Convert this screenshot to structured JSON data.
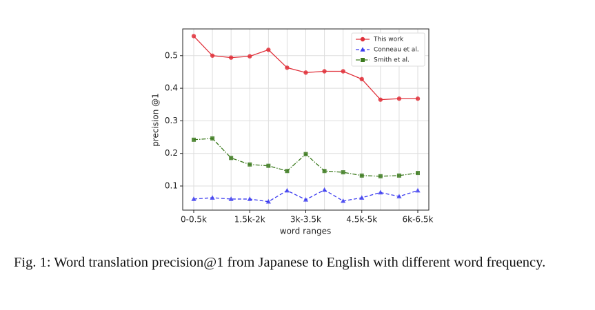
{
  "chart_data": {
    "type": "line",
    "xlabel": "word ranges",
    "ylabel": "precision @1",
    "categories": [
      "0-0.5k",
      null,
      null,
      "1.5k-2k",
      null,
      null,
      "3k-3.5k",
      null,
      null,
      "4.5k-5k",
      null,
      null,
      "6k-6.5k"
    ],
    "series": [
      {
        "name": "This work",
        "color": "#e0303a",
        "marker": "circle",
        "dash": "solid",
        "values": [
          0.56,
          0.5,
          0.494,
          0.498,
          0.518,
          0.463,
          0.448,
          0.452,
          0.452,
          0.428,
          0.365,
          0.368,
          0.368
        ]
      },
      {
        "name": "Conneau et al.",
        "color": "#3b3bf0",
        "marker": "triangle",
        "dash": "dashed",
        "values": [
          0.06,
          0.064,
          0.06,
          0.06,
          0.052,
          0.086,
          0.058,
          0.088,
          0.054,
          0.064,
          0.08,
          0.068,
          0.086
        ]
      },
      {
        "name": "Smith et al.",
        "color": "#3c7a1e",
        "marker": "square",
        "dash": "dashdot",
        "values": [
          0.242,
          0.246,
          0.186,
          0.166,
          0.162,
          0.146,
          0.198,
          0.146,
          0.142,
          0.132,
          0.13,
          0.132,
          0.14
        ]
      }
    ],
    "ylim": [
      0.026,
      0.582
    ],
    "yticks": [
      0.1,
      0.2,
      0.3,
      0.4,
      0.5
    ],
    "grid": true,
    "legend": "upper right"
  },
  "caption": "Fig. 1: Word translation precision@1 from Japanese to English with different word frequency."
}
